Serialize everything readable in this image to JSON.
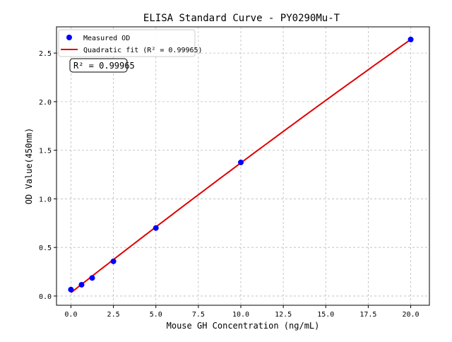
{
  "chart_data": {
    "type": "scatter",
    "title": "ELISA Standard Curve - PY0290Mu-T",
    "xlabel": "Mouse GH Concentration (ng/mL)",
    "ylabel": "OD Value(450nm)",
    "xlim": [
      -0.85,
      21.1
    ],
    "ylim": [
      -0.095,
      2.77
    ],
    "grid": true,
    "legend_position": "top-left",
    "xticks": [
      "0.0",
      "2.5",
      "5.0",
      "7.5",
      "10.0",
      "12.5",
      "15.0",
      "17.5",
      "20.0"
    ],
    "yticks": [
      "0.0",
      "0.5",
      "1.0",
      "1.5",
      "2.0",
      "2.5"
    ],
    "series": [
      {
        "name": "Measured OD",
        "kind": "scatter",
        "color": "#0000ff",
        "x": [
          0,
          0.625,
          1.25,
          2.5,
          5,
          10,
          20
        ],
        "y": [
          0.066,
          0.116,
          0.186,
          0.357,
          0.7,
          1.375,
          2.64
        ]
      },
      {
        "name": "Quadratic fit (R² = 0.99965)",
        "kind": "line",
        "color": "#e00000",
        "coefficients": {
          "a": 0.035,
          "b": 0.13675,
          "c": -0.000325
        },
        "x_range": [
          0,
          20
        ]
      }
    ],
    "annotation": "R² = 0.99965"
  }
}
